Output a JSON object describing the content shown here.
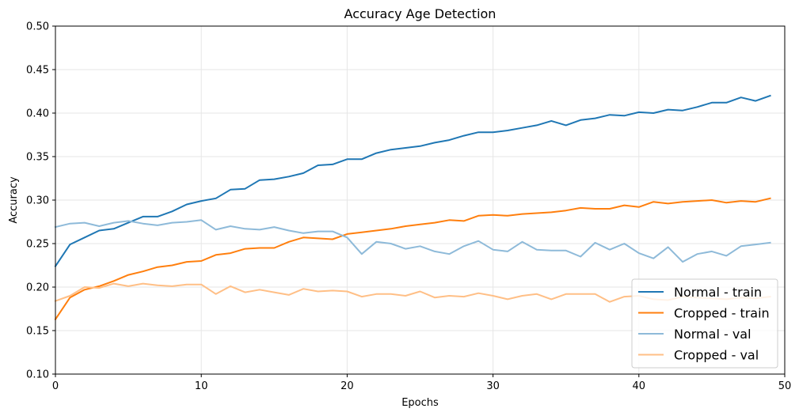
{
  "chart_data": {
    "type": "line",
    "title": "Accuracy Age Detection",
    "xlabel": "Epochs",
    "ylabel": "Accuracy",
    "xlim": [
      0,
      50
    ],
    "ylim": [
      0.1,
      0.5
    ],
    "x_ticks": [
      "0",
      "10",
      "20",
      "30",
      "40",
      "50"
    ],
    "y_ticks": [
      "0.10",
      "0.15",
      "0.20",
      "0.25",
      "0.30",
      "0.35",
      "0.40",
      "0.45",
      "0.50"
    ],
    "grid": true,
    "legend_position": "lower-right",
    "x": [
      0,
      1,
      2,
      3,
      4,
      5,
      6,
      7,
      8,
      9,
      10,
      11,
      12,
      13,
      14,
      15,
      16,
      17,
      18,
      19,
      20,
      21,
      22,
      23,
      24,
      25,
      26,
      27,
      28,
      29,
      30,
      31,
      32,
      33,
      34,
      35,
      36,
      37,
      38,
      39,
      40,
      41,
      42,
      43,
      44,
      45,
      46,
      47,
      48,
      49
    ],
    "series": [
      {
        "name": "Normal - train",
        "color": "#1f77b4",
        "values": [
          0.224,
          0.249,
          0.257,
          0.265,
          0.267,
          0.274,
          0.281,
          0.281,
          0.287,
          0.295,
          0.299,
          0.302,
          0.312,
          0.313,
          0.323,
          0.324,
          0.327,
          0.331,
          0.34,
          0.341,
          0.347,
          0.347,
          0.354,
          0.358,
          0.36,
          0.362,
          0.366,
          0.369,
          0.374,
          0.378,
          0.378,
          0.38,
          0.383,
          0.386,
          0.391,
          0.386,
          0.392,
          0.394,
          0.398,
          0.397,
          0.401,
          0.4,
          0.404,
          0.403,
          0.407,
          0.412,
          0.412,
          0.418,
          0.414,
          0.42
        ]
      },
      {
        "name": "Cropped - train",
        "color": "#ff7f0e",
        "values": [
          0.163,
          0.188,
          0.197,
          0.201,
          0.207,
          0.214,
          0.218,
          0.223,
          0.225,
          0.229,
          0.23,
          0.237,
          0.239,
          0.244,
          0.245,
          0.245,
          0.252,
          0.257,
          0.256,
          0.255,
          0.261,
          0.263,
          0.265,
          0.267,
          0.27,
          0.272,
          0.274,
          0.277,
          0.276,
          0.282,
          0.283,
          0.282,
          0.284,
          0.285,
          0.286,
          0.288,
          0.291,
          0.29,
          0.29,
          0.294,
          0.292,
          0.298,
          0.296,
          0.298,
          0.299,
          0.3,
          0.297,
          0.299,
          0.298,
          0.302
        ]
      },
      {
        "name": "Normal - val",
        "color": "#8ebad9",
        "values": [
          0.269,
          0.273,
          0.274,
          0.27,
          0.274,
          0.276,
          0.273,
          0.271,
          0.274,
          0.275,
          0.277,
          0.266,
          0.27,
          0.267,
          0.266,
          0.269,
          0.265,
          0.262,
          0.264,
          0.264,
          0.257,
          0.238,
          0.252,
          0.25,
          0.244,
          0.247,
          0.241,
          0.238,
          0.247,
          0.253,
          0.243,
          0.241,
          0.252,
          0.243,
          0.242,
          0.242,
          0.235,
          0.251,
          0.243,
          0.25,
          0.239,
          0.233,
          0.246,
          0.229,
          0.238,
          0.241,
          0.236,
          0.247,
          0.249,
          0.251
        ]
      },
      {
        "name": "Cropped - val",
        "color": "#ffbf86",
        "values": [
          0.184,
          0.19,
          0.2,
          0.199,
          0.204,
          0.201,
          0.204,
          0.202,
          0.201,
          0.203,
          0.203,
          0.192,
          0.201,
          0.194,
          0.197,
          0.194,
          0.191,
          0.198,
          0.195,
          0.196,
          0.195,
          0.189,
          0.192,
          0.192,
          0.19,
          0.195,
          0.188,
          0.19,
          0.189,
          0.193,
          0.19,
          0.186,
          0.19,
          0.192,
          0.186,
          0.192,
          0.192,
          0.192,
          0.183,
          0.189,
          0.19,
          0.186,
          0.185,
          0.189,
          0.188,
          0.187,
          0.186,
          0.188,
          0.187,
          0.189
        ]
      }
    ]
  }
}
